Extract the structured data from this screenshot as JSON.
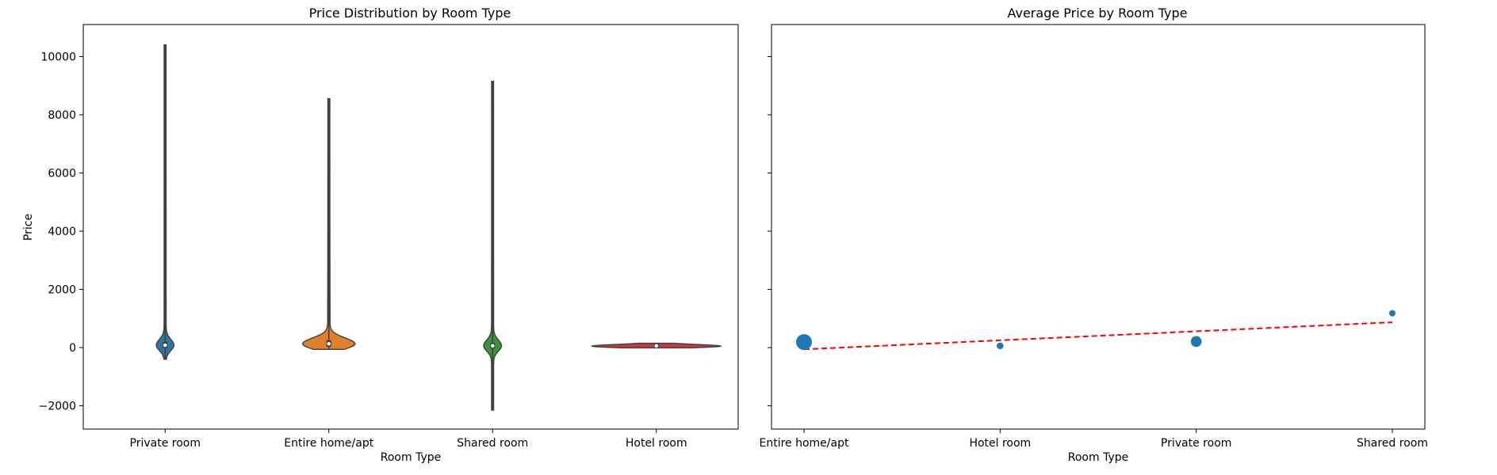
{
  "chart_data": [
    {
      "type": "violin",
      "title": "Price Distribution by Room Type",
      "xlabel": "Room Type",
      "ylabel": "Price",
      "ylim": [
        -2800,
        11100
      ],
      "yticks": [
        -2000,
        0,
        2000,
        4000,
        6000,
        8000,
        10000
      ],
      "ytick_labels": [
        "−2000",
        "0",
        "2000",
        "4000",
        "6000",
        "8000",
        "10000"
      ],
      "categories": [
        "Private room",
        "Entire home/apt",
        "Shared room",
        "Hotel room"
      ],
      "colors": [
        "#3274a1",
        "#e1812c",
        "#3a923a",
        "#c03d3e"
      ],
      "distributions": [
        {
          "min": -400,
          "max": 10400,
          "median": 80,
          "q1": 40,
          "q3": 150,
          "peak": 80
        },
        {
          "min": -60,
          "max": 8550,
          "median": 130,
          "q1": 80,
          "q3": 200,
          "peak": 130
        },
        {
          "min": -2150,
          "max": 9150,
          "median": 60,
          "q1": 30,
          "q3": 100,
          "peak": 60
        },
        {
          "min": -10,
          "max": 150,
          "median": 60,
          "q1": 40,
          "q3": 90,
          "peak": 50
        }
      ]
    },
    {
      "type": "scatter",
      "title": "Average Price by Room Type",
      "xlabel": "Room Type",
      "ylim": [
        -2800,
        11100
      ],
      "categories": [
        "Entire home/apt",
        "Hotel room",
        "Private room",
        "Shared room"
      ],
      "point_color": "#1f77b4",
      "values": [
        190,
        60,
        210,
        1180
      ],
      "relative_size": [
        1.0,
        0.18,
        0.55,
        0.15
      ],
      "trend": {
        "start": -60,
        "end": 870,
        "color": "#ff0000",
        "style": "dashed"
      }
    }
  ]
}
